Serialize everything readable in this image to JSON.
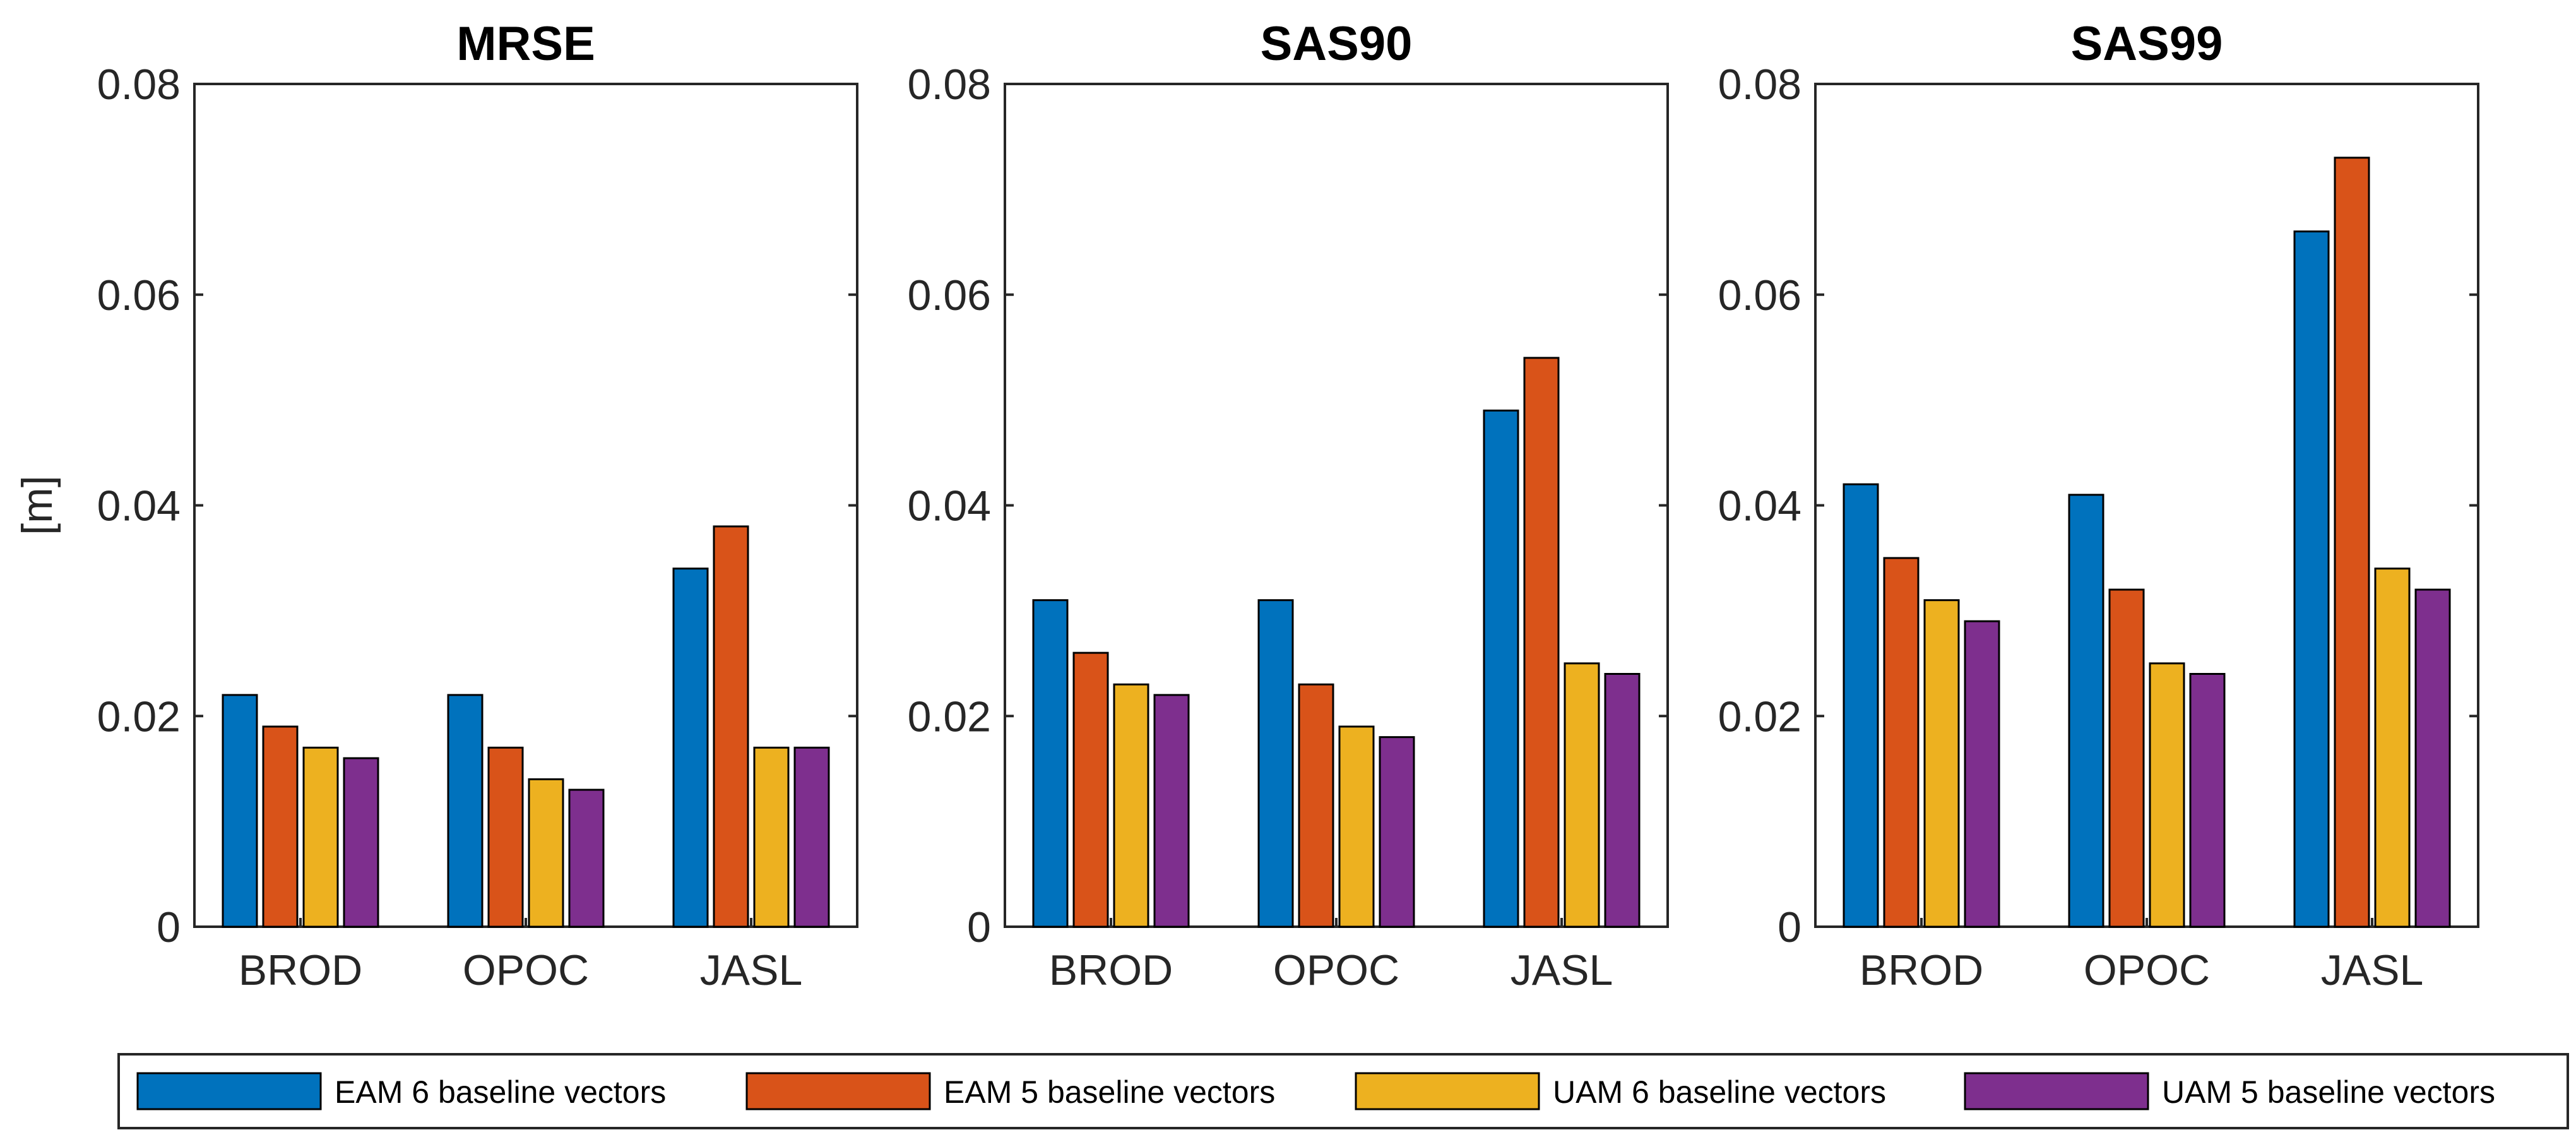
{
  "chart_data": [
    {
      "type": "bar",
      "title": "MRSE",
      "xlabel": "",
      "ylabel": "[m]",
      "ylim": [
        0,
        0.08
      ],
      "yticks": [
        "0",
        "0.02",
        "0.04",
        "0.06",
        "0.08"
      ],
      "categories": [
        "BROD",
        "OPOC",
        "JASL"
      ],
      "series": [
        {
          "name": "EAM 6 baseline vectors",
          "values": [
            0.022,
            0.022,
            0.034
          ]
        },
        {
          "name": "EAM 5 baseline vectors",
          "values": [
            0.019,
            0.017,
            0.038
          ]
        },
        {
          "name": "UAM 6 baseline vectors",
          "values": [
            0.017,
            0.014,
            0.017
          ]
        },
        {
          "name": "UAM 5 baseline vectors",
          "values": [
            0.016,
            0.013,
            0.017
          ]
        }
      ]
    },
    {
      "type": "bar",
      "title": "SAS90",
      "xlabel": "",
      "ylabel": "",
      "ylim": [
        0,
        0.08
      ],
      "yticks": [
        "0",
        "0.02",
        "0.04",
        "0.06",
        "0.08"
      ],
      "categories": [
        "BROD",
        "OPOC",
        "JASL"
      ],
      "series": [
        {
          "name": "EAM 6 baseline vectors",
          "values": [
            0.031,
            0.031,
            0.049
          ]
        },
        {
          "name": "EAM 5 baseline vectors",
          "values": [
            0.026,
            0.023,
            0.054
          ]
        },
        {
          "name": "UAM 6 baseline vectors",
          "values": [
            0.023,
            0.019,
            0.025
          ]
        },
        {
          "name": "UAM 5 baseline vectors",
          "values": [
            0.022,
            0.018,
            0.024
          ]
        }
      ]
    },
    {
      "type": "bar",
      "title": "SAS99",
      "xlabel": "",
      "ylabel": "",
      "ylim": [
        0,
        0.08
      ],
      "yticks": [
        "0",
        "0.02",
        "0.04",
        "0.06",
        "0.08"
      ],
      "categories": [
        "BROD",
        "OPOC",
        "JASL"
      ],
      "series": [
        {
          "name": "EAM 6 baseline vectors",
          "values": [
            0.042,
            0.041,
            0.066
          ]
        },
        {
          "name": "EAM 5 baseline vectors",
          "values": [
            0.035,
            0.032,
            0.073
          ]
        },
        {
          "name": "UAM 6 baseline vectors",
          "values": [
            0.031,
            0.025,
            0.034
          ]
        },
        {
          "name": "UAM 5 baseline vectors",
          "values": [
            0.029,
            0.024,
            0.032
          ]
        }
      ]
    }
  ],
  "legend": {
    "placement": "bottom",
    "entries": [
      {
        "label": "EAM 6 baseline vectors",
        "color": "#0072BD"
      },
      {
        "label": "EAM 5 baseline vectors",
        "color": "#D95319"
      },
      {
        "label": "UAM 6 baseline vectors",
        "color": "#EDB120"
      },
      {
        "label": "UAM 5 baseline vectors",
        "color": "#7E2F8E"
      }
    ]
  },
  "colors": {
    "series": [
      "#0072BD",
      "#D95319",
      "#EDB120",
      "#7E2F8E"
    ],
    "axis": "#262626",
    "bar_edge": "#000000"
  }
}
